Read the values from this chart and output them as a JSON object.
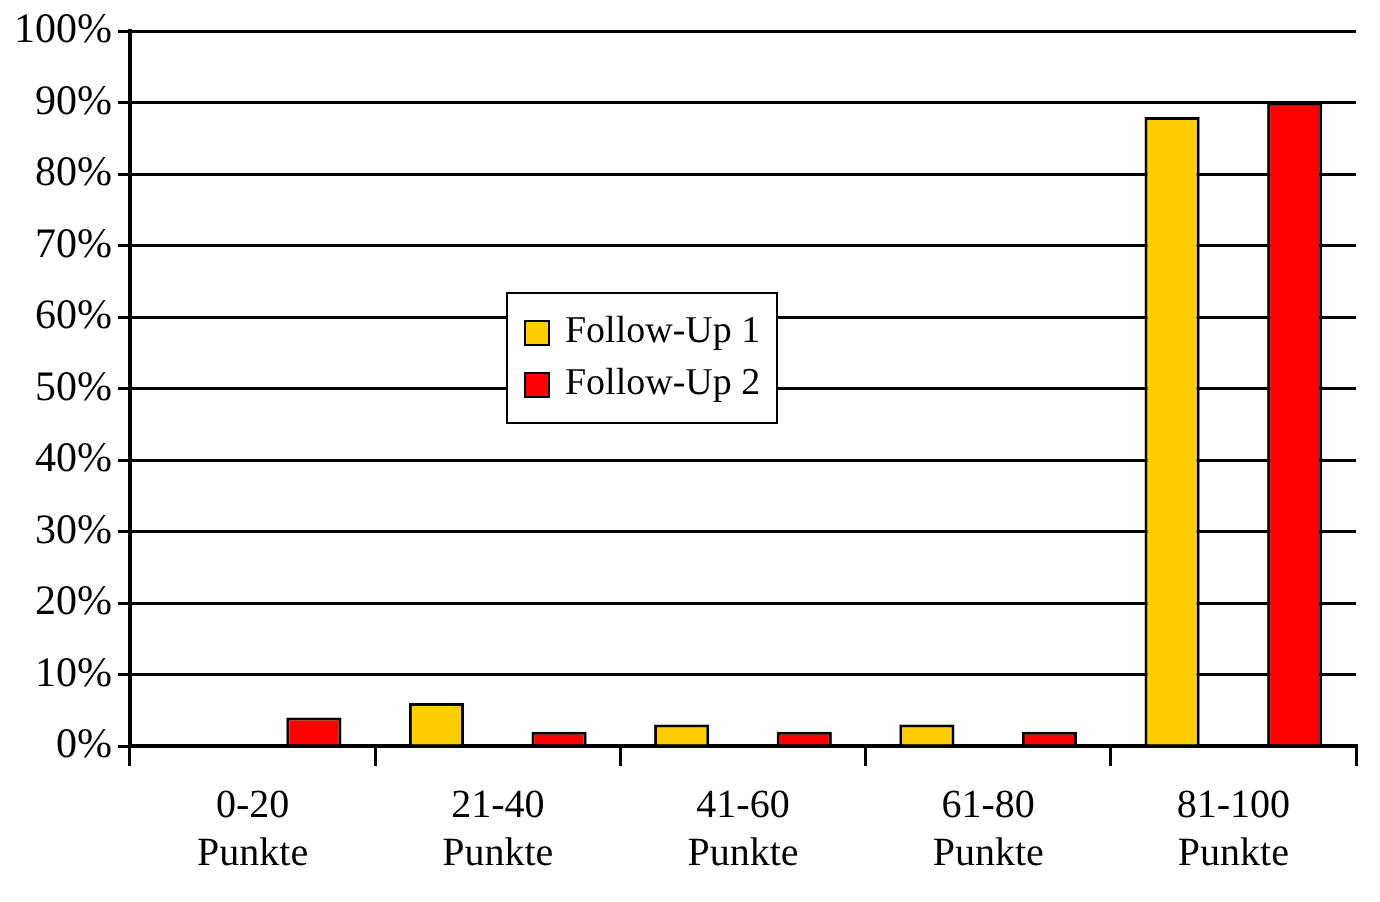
{
  "chart_data": {
    "type": "bar",
    "categories": [
      "0-20 Punkte",
      "21-40 Punkte",
      "41-60 Punkte",
      "61-80 Punkte",
      "81-100 Punkte"
    ],
    "series": [
      {
        "name": "Follow-Up 1",
        "color": "#ffcc00",
        "values": [
          null,
          6,
          3,
          3,
          88
        ]
      },
      {
        "name": "Follow-Up 2",
        "color": "#ff0000",
        "values": [
          4,
          2,
          2,
          2,
          90
        ]
      }
    ],
    "ylim": [
      0,
      100
    ],
    "yticks": [
      {
        "value": 0,
        "label": "0%"
      },
      {
        "value": 10,
        "label": "10%"
      },
      {
        "value": 20,
        "label": "20%"
      },
      {
        "value": 30,
        "label": "30%"
      },
      {
        "value": 40,
        "label": "40%"
      },
      {
        "value": 50,
        "label": "50%"
      },
      {
        "value": 60,
        "label": "60%"
      },
      {
        "value": 70,
        "label": "70%"
      },
      {
        "value": 80,
        "label": "80%"
      },
      {
        "value": 90,
        "label": "90%"
      },
      {
        "value": 100,
        "label": "100%"
      }
    ],
    "grid": "y",
    "legend": "center"
  }
}
